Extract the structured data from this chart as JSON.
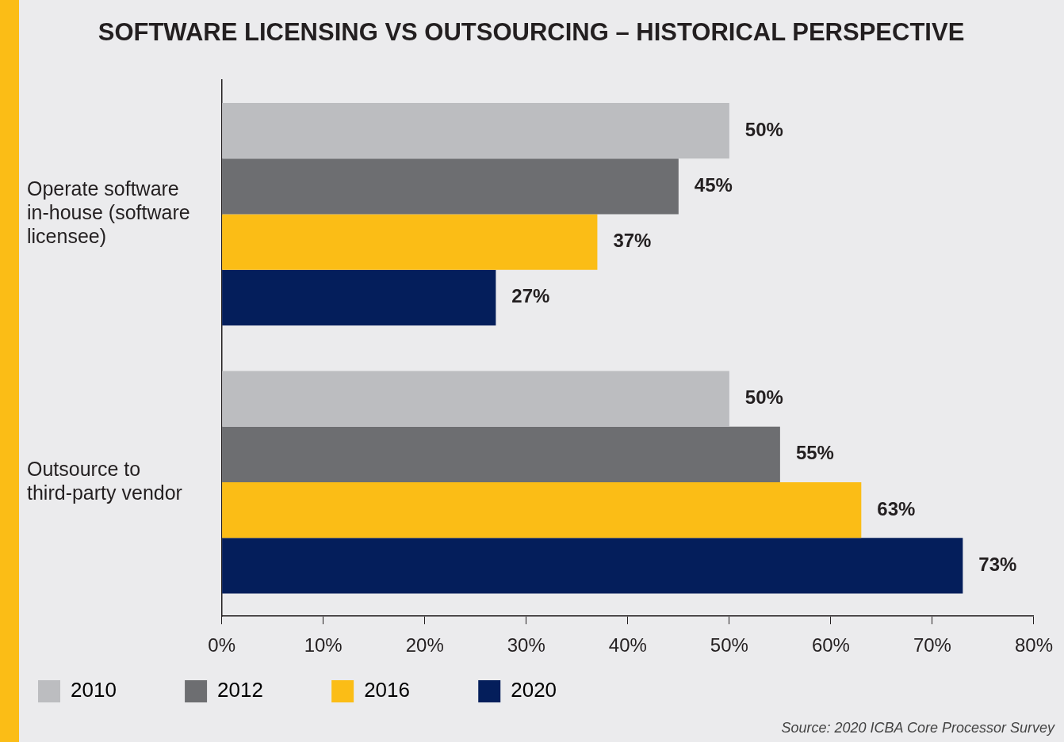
{
  "chart_data": {
    "type": "bar",
    "orientation": "horizontal",
    "title": "SOFTWARE LICENSING VS OUTSOURCING – HISTORICAL PERSPECTIVE",
    "categories": [
      "Operate software in-house (software licensee)",
      "Outsource to third-party vendor"
    ],
    "series": [
      {
        "name": "2010",
        "color": "#bcbdc0",
        "values": [
          50,
          50
        ],
        "value_labels": [
          "50%",
          "50%"
        ]
      },
      {
        "name": "2012",
        "color": "#6d6e71",
        "values": [
          45,
          55
        ],
        "value_labels": [
          "45%",
          "55%"
        ]
      },
      {
        "name": "2016",
        "color": "#fbbd16",
        "values": [
          37,
          63
        ],
        "value_labels": [
          "37%",
          "63%"
        ]
      },
      {
        "name": "2020",
        "color": "#041e5b",
        "values": [
          27,
          73
        ],
        "value_labels": [
          "27%",
          "73%"
        ]
      }
    ],
    "xlim": [
      0,
      80
    ],
    "xticks": [
      {
        "value": 0,
        "label": "0%"
      },
      {
        "value": 10,
        "label": "10%"
      },
      {
        "value": 20,
        "label": "20%"
      },
      {
        "value": 30,
        "label": "30%"
      },
      {
        "value": 40,
        "label": "40%"
      },
      {
        "value": 50,
        "label": "50%"
      },
      {
        "value": 60,
        "label": "60%"
      },
      {
        "value": 70,
        "label": "70%"
      },
      {
        "value": 80,
        "label": "80%"
      }
    ],
    "grid": false,
    "legend": "bottom",
    "annotations": [
      "Source: 2020 ICBA Core Processor Survey"
    ]
  }
}
